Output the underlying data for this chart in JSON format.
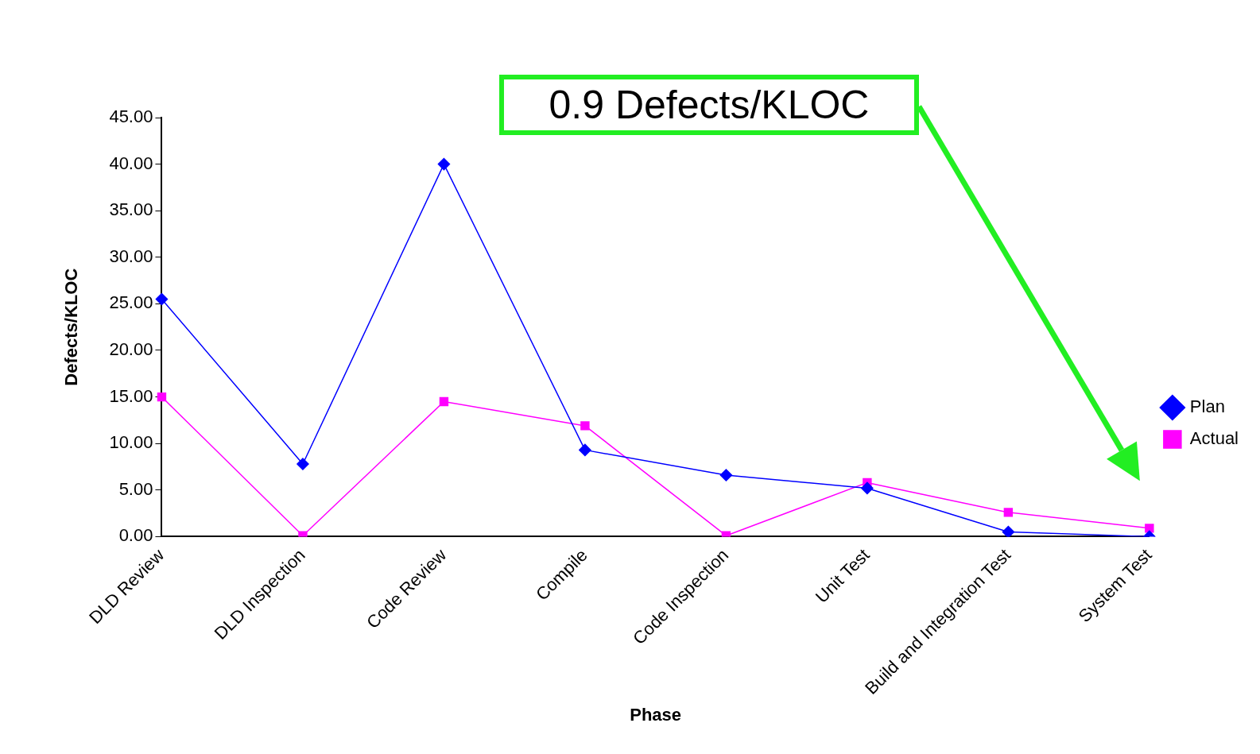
{
  "chart_data": {
    "type": "line",
    "xlabel": "Phase",
    "ylabel": "Defects/KLOC",
    "categories": [
      "DLD Review",
      "DLD Inspection",
      "Code Review",
      "Compile",
      "Code Inspection",
      "Unit Test",
      "Build and Integration Test",
      "System Test"
    ],
    "series": [
      {
        "name": "Plan",
        "color": "#0000ff",
        "marker": "diamond",
        "values": [
          25.5,
          7.8,
          40.0,
          9.3,
          6.6,
          5.2,
          0.5,
          0.0
        ]
      },
      {
        "name": "Actual",
        "color": "#ff00ff",
        "marker": "square",
        "values": [
          15.0,
          0.1,
          14.5,
          11.9,
          0.1,
          5.8,
          2.6,
          0.9
        ]
      }
    ],
    "ylim": [
      0,
      45
    ],
    "yticks": [
      {
        "value": 0,
        "label": "0.00"
      },
      {
        "value": 5,
        "label": "5.00"
      },
      {
        "value": 10,
        "label": "10.00"
      },
      {
        "value": 15,
        "label": "15.00"
      },
      {
        "value": 20,
        "label": "20.00"
      },
      {
        "value": 25,
        "label": "25.00"
      },
      {
        "value": 30,
        "label": "30.00"
      },
      {
        "value": 35,
        "label": "35.00"
      },
      {
        "value": 40,
        "label": "40.00"
      },
      {
        "value": 45,
        "label": "45.00"
      }
    ],
    "grid": false,
    "legend": "right",
    "annotations": [
      "0.9 Defects/KLOC"
    ]
  }
}
